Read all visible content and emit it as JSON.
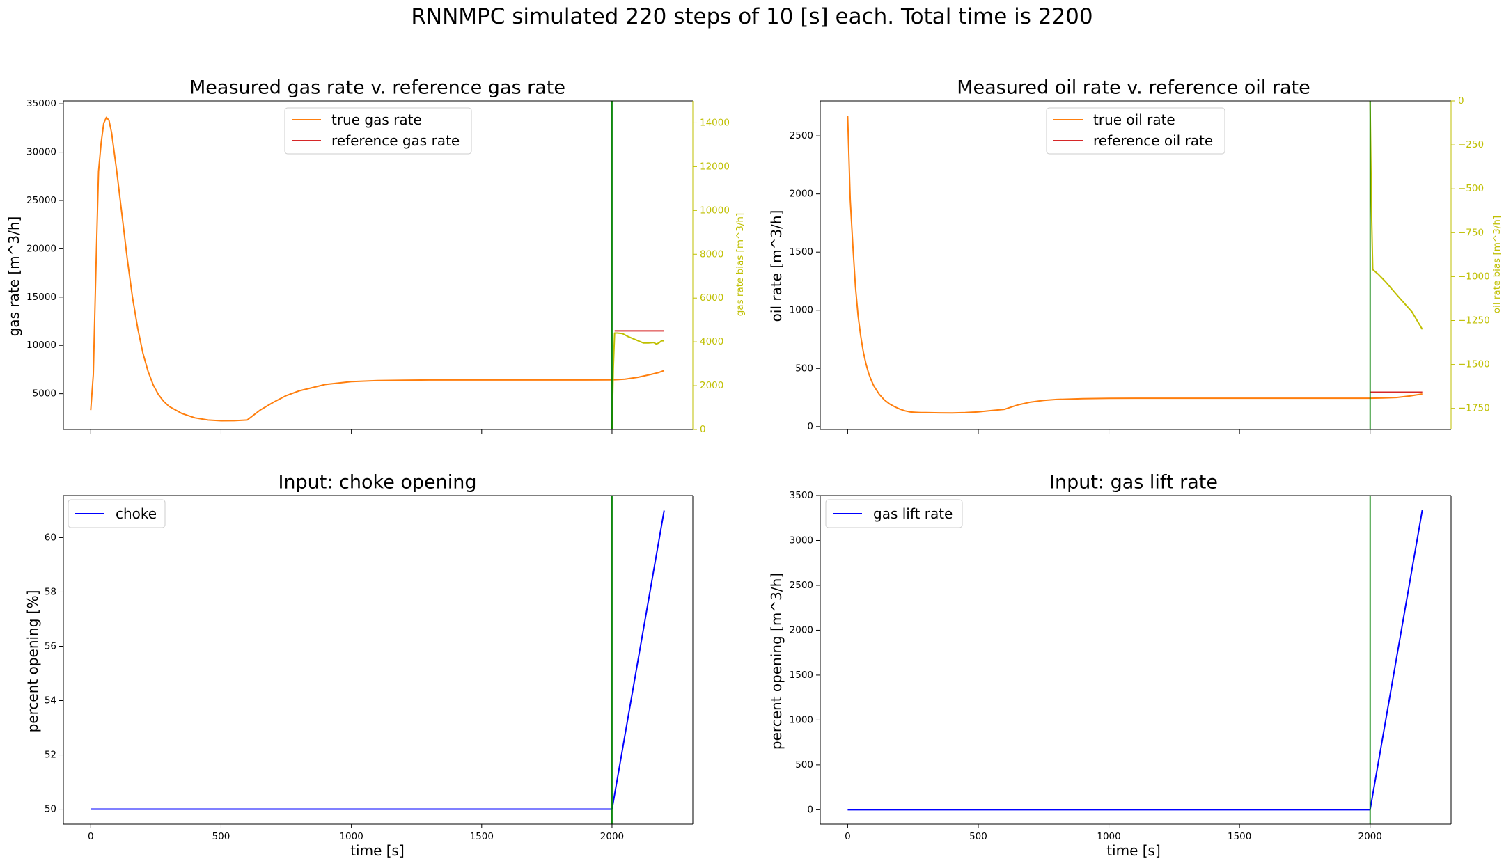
{
  "suptitle": "RNNMPC simulated 220 steps of 10 [s] each. Total time is 2200",
  "colors": {
    "true_rate": "#ff7f0e",
    "reference": "#d62728",
    "bias": "#bfbf00",
    "input": "#0000ff",
    "vline": "#008000"
  },
  "chart_data": [
    {
      "id": "gas",
      "type": "line",
      "title": "Measured gas rate v. reference gas rate",
      "xlabel": "",
      "ylabel": "gas rate [m^3/h]",
      "y2label": "gas rate bias [m^3/h]",
      "xlim": [
        -105,
        2310
      ],
      "ylim": [
        1300,
        35300
      ],
      "y2lim": [
        0,
        15000
      ],
      "xticks": [
        0,
        500,
        1000,
        1500,
        2000
      ],
      "xtick_labels": [],
      "yticks": [
        5000,
        10000,
        15000,
        20000,
        25000,
        30000,
        35000
      ],
      "y2ticks": [
        0,
        2000,
        4000,
        6000,
        8000,
        10000,
        12000,
        14000
      ],
      "vline_x": 2000,
      "legend": {
        "position": "upper center",
        "entries": [
          "true gas rate",
          "reference gas rate"
        ]
      },
      "series": [
        {
          "name": "true gas rate",
          "role": "true",
          "x": [
            0,
            10,
            20,
            30,
            40,
            50,
            60,
            70,
            80,
            90,
            100,
            120,
            140,
            160,
            180,
            200,
            220,
            240,
            260,
            280,
            300,
            350,
            400,
            450,
            500,
            550,
            600,
            650,
            700,
            750,
            800,
            900,
            1000,
            1100,
            1200,
            1300,
            1400,
            1500,
            1600,
            1700,
            1800,
            1900,
            2000,
            2050,
            2100,
            2150,
            2180,
            2200
          ],
          "y": [
            3300,
            7000,
            18000,
            28000,
            31000,
            33000,
            33600,
            33300,
            32000,
            30000,
            28000,
            23500,
            19000,
            15000,
            11800,
            9200,
            7300,
            5900,
            4900,
            4200,
            3700,
            2950,
            2500,
            2280,
            2200,
            2210,
            2280,
            3300,
            4100,
            4800,
            5300,
            5950,
            6250,
            6360,
            6400,
            6420,
            6420,
            6420,
            6420,
            6420,
            6420,
            6420,
            6430,
            6500,
            6700,
            7000,
            7200,
            7400
          ]
        },
        {
          "name": "reference gas rate",
          "role": "reference",
          "x": [
            2010,
            2200
          ],
          "y": [
            11500,
            11500
          ]
        },
        {
          "name": "",
          "role": "bias",
          "axis": "right",
          "x": [
            2000,
            2005,
            2010,
            2020,
            2040,
            2060,
            2080,
            2100,
            2120,
            2140,
            2160,
            2170,
            2180,
            2190,
            2200
          ],
          "y": [
            0,
            2800,
            4400,
            4400,
            4380,
            4250,
            4150,
            4050,
            3950,
            3950,
            3970,
            3900,
            3950,
            4050,
            4050
          ]
        }
      ]
    },
    {
      "id": "oil",
      "type": "line",
      "title": "Measured oil rate v. reference oil rate",
      "xlabel": "",
      "ylabel": "oil rate [m^3/h]",
      "y2label": "oil rate bias [m^3/h]",
      "xlim": [
        -105,
        2310
      ],
      "ylim": [
        -25,
        2800
      ],
      "y2lim": [
        -1870,
        0
      ],
      "xticks": [
        0,
        500,
        1000,
        1500,
        2000
      ],
      "xtick_labels": [],
      "yticks": [
        0,
        500,
        1000,
        1500,
        2000,
        2500
      ],
      "y2ticks": [
        0,
        -250,
        -500,
        -750,
        -1000,
        -1250,
        -1500,
        -1750
      ],
      "vline_x": 2000,
      "legend": {
        "position": "upper center",
        "entries": [
          "true oil rate",
          "reference oil rate"
        ]
      },
      "series": [
        {
          "name": "true oil rate",
          "role": "true",
          "x": [
            0,
            10,
            20,
            30,
            40,
            50,
            60,
            70,
            80,
            90,
            100,
            120,
            140,
            160,
            180,
            200,
            220,
            240,
            260,
            280,
            300,
            350,
            400,
            450,
            500,
            550,
            600,
            650,
            700,
            750,
            800,
            900,
            1000,
            1100,
            1200,
            1300,
            1400,
            1500,
            1600,
            1700,
            1800,
            1900,
            2000,
            2050,
            2100,
            2150,
            2200
          ],
          "y": [
            2670,
            1950,
            1550,
            1200,
            950,
            780,
            640,
            540,
            460,
            400,
            350,
            280,
            230,
            195,
            170,
            150,
            135,
            125,
            122,
            120,
            120,
            118,
            117,
            120,
            126,
            137,
            148,
            185,
            210,
            225,
            233,
            240,
            243,
            244,
            244,
            244,
            244,
            244,
            244,
            244,
            244,
            244,
            244,
            246,
            250,
            262,
            280
          ]
        },
        {
          "name": "reference oil rate",
          "role": "reference",
          "x": [
            2000,
            2200
          ],
          "y": [
            295,
            295
          ]
        },
        {
          "name": "",
          "role": "bias",
          "axis": "right",
          "x": [
            2000,
            2005,
            2010,
            2030,
            2060,
            2100,
            2130,
            2160,
            2180,
            2200
          ],
          "y": [
            0,
            -600,
            -960,
            -985,
            -1030,
            -1100,
            -1150,
            -1200,
            -1250,
            -1300
          ]
        }
      ]
    },
    {
      "id": "choke",
      "type": "line",
      "title": "Input: choke opening",
      "xlabel": "time [s]",
      "ylabel": "percent opening [%]",
      "xlim": [
        -105,
        2310
      ],
      "ylim": [
        49.45,
        61.55
      ],
      "xticks": [
        0,
        500,
        1000,
        1500,
        2000
      ],
      "xtick_labels": [
        "0",
        "500",
        "1000",
        "1500",
        "2000"
      ],
      "yticks": [
        50,
        52,
        54,
        56,
        58,
        60
      ],
      "vline_x": 2000,
      "legend": {
        "position": "upper left",
        "entries": [
          "choke"
        ]
      },
      "series": [
        {
          "name": "choke",
          "role": "input",
          "x": [
            0,
            2000,
            2200
          ],
          "y": [
            50,
            50,
            61
          ]
        }
      ]
    },
    {
      "id": "gaslift",
      "type": "line",
      "title": "Input: gas lift rate",
      "xlabel": "time [s]",
      "ylabel": "percent opening [m^3/h]",
      "xlim": [
        -105,
        2310
      ],
      "ylim": [
        -160,
        3500
      ],
      "xticks": [
        0,
        500,
        1000,
        1500,
        2000
      ],
      "xtick_labels": [
        "0",
        "500",
        "1000",
        "1500",
        "2000"
      ],
      "yticks": [
        0,
        500,
        1000,
        1500,
        2000,
        2500,
        3000,
        3500
      ],
      "vline_x": 2000,
      "legend": {
        "position": "upper left",
        "entries": [
          "gas lift rate"
        ]
      },
      "series": [
        {
          "name": "gas lift rate",
          "role": "input",
          "x": [
            0,
            2000,
            2200
          ],
          "y": [
            0,
            0,
            3340
          ]
        }
      ]
    }
  ]
}
